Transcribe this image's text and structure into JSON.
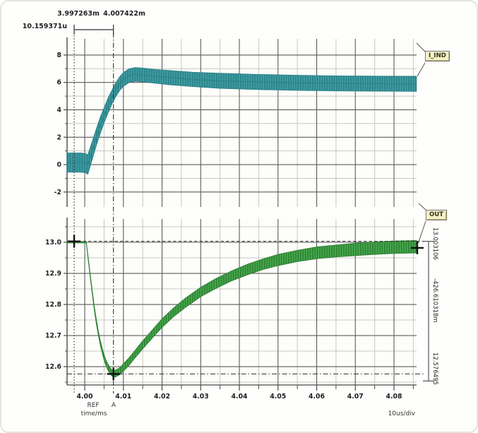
{
  "header": {
    "ref_time": "3.997263m",
    "a_time": "4.007422m",
    "delta_time": "10.159371u"
  },
  "flags": {
    "top": "I_IND",
    "bottom": "OUT"
  },
  "measurements": {
    "top_cursor_value": "13.003106",
    "delta_value": "-426.610318m",
    "bottom_cursor_value": "12.576495"
  },
  "footer": {
    "ref_label": "REF",
    "a_label": "A",
    "x_axis_unit": "time/ms",
    "x_div": "10us/div"
  },
  "colors": {
    "iind": "#3f9ea4",
    "iind_dark": "#2a8186",
    "out": "#46a84c",
    "out_dark": "#2e8033",
    "grid_major": "#5b5b5b",
    "grid_minor": "#c6c6c3",
    "axis": "#4a4a4a",
    "cursor": "#2f2f2f",
    "marker": "#111111",
    "plot_bg": "#fdfdfa",
    "text": "#1e1e1e"
  },
  "chart_data": [
    {
      "type": "area",
      "name": "I_IND",
      "x": {
        "range": [
          3.99543,
          4.08584
        ],
        "ticks": [
          4.0,
          4.01,
          4.02,
          4.03,
          4.04,
          4.05,
          4.06,
          4.07,
          4.08
        ],
        "tick_labels": [
          "4.00",
          "4.01",
          "4.02",
          "4.03",
          "4.04",
          "4.05",
          "4.06",
          "4.07",
          "4.08"
        ],
        "minor": [
          4.005,
          4.015,
          4.025,
          4.035,
          4.045,
          4.055,
          4.065,
          4.075,
          4.085
        ],
        "unit": "time/ms",
        "per_div": "10us/div"
      },
      "y": {
        "range": [
          -3.09,
          9.18
        ],
        "ticks": [
          8,
          6,
          4,
          2,
          0,
          -2
        ],
        "tick_labels": [
          "8",
          "6",
          "4",
          "2",
          "0",
          "-2"
        ],
        "minor": [
          7,
          5,
          3,
          1,
          -1
        ]
      },
      "band_points": [
        [
          3.9954,
          0.15,
          0.7
        ],
        [
          3.999,
          0.15,
          0.7
        ],
        [
          4.0003,
          0.1,
          0.7
        ],
        [
          4.0008,
          0.0,
          0.7
        ],
        [
          4.002,
          1.1,
          0.65
        ],
        [
          4.003,
          2.0,
          0.6
        ],
        [
          4.004,
          2.85,
          0.6
        ],
        [
          4.005,
          3.6,
          0.55
        ],
        [
          4.006,
          4.3,
          0.55
        ],
        [
          4.007,
          4.9,
          0.5
        ],
        [
          4.008,
          5.45,
          0.5
        ],
        [
          4.009,
          5.9,
          0.5
        ],
        [
          4.01,
          6.22,
          0.5
        ],
        [
          4.0115,
          6.5,
          0.5
        ],
        [
          4.013,
          6.58,
          0.5
        ],
        [
          4.015,
          6.55,
          0.5
        ],
        [
          4.018,
          6.45,
          0.5
        ],
        [
          4.022,
          6.35,
          0.52
        ],
        [
          4.028,
          6.22,
          0.52
        ],
        [
          4.035,
          6.12,
          0.55
        ],
        [
          4.045,
          6.03,
          0.55
        ],
        [
          4.055,
          5.97,
          0.55
        ],
        [
          4.065,
          5.93,
          0.55
        ],
        [
          4.075,
          5.91,
          0.55
        ],
        [
          4.0858,
          5.9,
          0.55
        ]
      ],
      "cursors": {
        "ref_t": 3.997263,
        "a_t": 4.007422,
        "delta_t": "10.159371u"
      }
    },
    {
      "type": "area",
      "name": "OUT",
      "x": {
        "range": [
          3.99543,
          4.08584
        ],
        "ticks": [
          4.0,
          4.01,
          4.02,
          4.03,
          4.04,
          4.05,
          4.06,
          4.07,
          4.08
        ],
        "tick_labels": [
          "4.00",
          "4.01",
          "4.02",
          "4.03",
          "4.04",
          "4.05",
          "4.06",
          "4.07",
          "4.08"
        ],
        "minor": [
          4.005,
          4.015,
          4.025,
          4.035,
          4.045,
          4.055,
          4.065,
          4.075,
          4.085
        ],
        "unit": "time/ms",
        "per_div": "10us/div"
      },
      "y": {
        "range": [
          12.541,
          13.075
        ],
        "ticks": [
          13.0,
          12.9,
          12.8,
          12.7,
          12.6
        ],
        "tick_labels": [
          "13.0",
          "12.9",
          "12.8",
          "12.7",
          "12.6"
        ],
        "minor": [
          13.05,
          12.95,
          12.85,
          12.75,
          12.65,
          12.55
        ]
      },
      "band_points": [
        [
          3.9954,
          13.0,
          0.002
        ],
        [
          4.0004,
          13.0,
          0.002
        ],
        [
          4.001,
          12.937,
          0.004
        ],
        [
          4.0015,
          12.885,
          0.005
        ],
        [
          4.002,
          12.833,
          0.006
        ],
        [
          4.0025,
          12.786,
          0.006
        ],
        [
          4.003,
          12.745,
          0.007
        ],
        [
          4.0035,
          12.709,
          0.007
        ],
        [
          4.004,
          12.678,
          0.008
        ],
        [
          4.0045,
          12.652,
          0.008
        ],
        [
          4.005,
          12.63,
          0.009
        ],
        [
          4.0055,
          12.612,
          0.009
        ],
        [
          4.006,
          12.598,
          0.01
        ],
        [
          4.0065,
          12.588,
          0.01
        ],
        [
          4.007,
          12.58,
          0.01
        ],
        [
          4.0074,
          12.578,
          0.011
        ],
        [
          4.008,
          12.578,
          0.011
        ],
        [
          4.009,
          12.585,
          0.011
        ],
        [
          4.01,
          12.597,
          0.012
        ],
        [
          4.0115,
          12.617,
          0.012
        ],
        [
          4.013,
          12.64,
          0.012
        ],
        [
          4.015,
          12.67,
          0.013
        ],
        [
          4.0175,
          12.705,
          0.013
        ],
        [
          4.02,
          12.74,
          0.014
        ],
        [
          4.023,
          12.775,
          0.014
        ],
        [
          4.026,
          12.805,
          0.015
        ],
        [
          4.03,
          12.84,
          0.015
        ],
        [
          4.034,
          12.868,
          0.016
        ],
        [
          4.038,
          12.892,
          0.016
        ],
        [
          4.042,
          12.912,
          0.017
        ],
        [
          4.046,
          12.929,
          0.017
        ],
        [
          4.05,
          12.943,
          0.018
        ],
        [
          4.055,
          12.956,
          0.018
        ],
        [
          4.06,
          12.966,
          0.019
        ],
        [
          4.065,
          12.972,
          0.019
        ],
        [
          4.07,
          12.977,
          0.02
        ],
        [
          4.075,
          12.981,
          0.02
        ],
        [
          4.08,
          12.984,
          0.02
        ],
        [
          4.0858,
          12.986,
          0.02
        ]
      ],
      "cursors": {
        "ref_t": 3.997263,
        "a_t": 4.007422,
        "y_top": 13.003106,
        "y_min": 12.576495,
        "delta_y": "-426.610318m"
      }
    }
  ]
}
